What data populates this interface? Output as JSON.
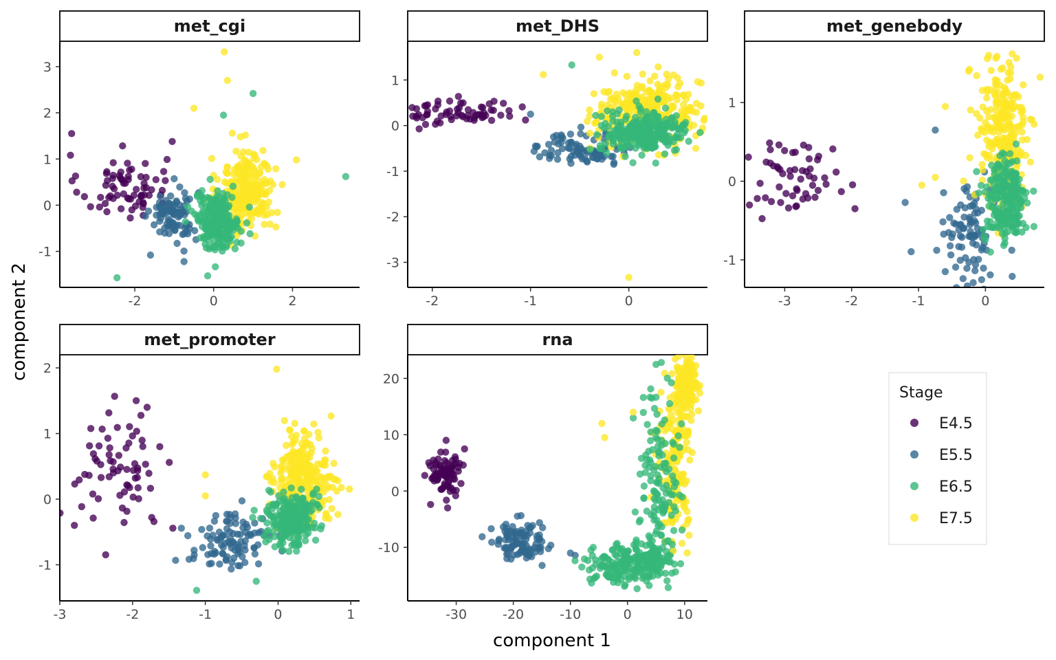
{
  "chart_data": {
    "type": "scatter",
    "xlabel": "component 1",
    "ylabel": "component 2",
    "legend": {
      "title": "Stage",
      "position": "right",
      "entries": [
        {
          "label": "E4.5",
          "color": "#440154"
        },
        {
          "label": "E5.5",
          "color": "#31688E"
        },
        {
          "label": "E6.5",
          "color": "#35B779"
        },
        {
          "label": "E7.5",
          "color": "#FDE725"
        }
      ]
    },
    "panels": [
      {
        "title": "met_cgi",
        "xlim": [
          -3.9,
          3.7
        ],
        "ylim": [
          -1.78,
          3.55
        ],
        "xticks": [
          -2,
          0,
          2
        ],
        "yticks": [
          -1,
          0,
          1,
          2,
          3
        ],
        "clusters": [
          {
            "stage": "E4.5",
            "cx": -2.3,
            "cy": 0.4,
            "sx": 0.55,
            "sy": 0.35,
            "n": 70
          },
          {
            "stage": "E5.5",
            "cx": -1.0,
            "cy": -0.2,
            "sx": 0.3,
            "sy": 0.3,
            "n": 90
          },
          {
            "stage": "E7.5",
            "cx": 0.85,
            "cy": 0.3,
            "sx": 0.35,
            "sy": 0.45,
            "n": 260
          },
          {
            "stage": "E6.5",
            "cx": 0.1,
            "cy": -0.35,
            "sx": 0.28,
            "sy": 0.3,
            "n": 240
          }
        ],
        "outliers": [
          {
            "stage": "E7.5",
            "x": 0.27,
            "y": 3.32
          },
          {
            "stage": "E7.5",
            "x": 0.35,
            "y": 2.7
          },
          {
            "stage": "E7.5",
            "x": -0.5,
            "y": 2.1
          },
          {
            "stage": "E7.5",
            "x": 2.1,
            "y": 0.98
          },
          {
            "stage": "E6.5",
            "x": 1.0,
            "y": 2.42
          },
          {
            "stage": "E6.5",
            "x": 0.25,
            "y": 1.95
          },
          {
            "stage": "E6.5",
            "x": 3.35,
            "y": 0.62
          },
          {
            "stage": "E6.5",
            "x": -2.45,
            "y": -1.57
          },
          {
            "stage": "E6.5",
            "x": -0.15,
            "y": -1.53
          },
          {
            "stage": "E4.5",
            "x": -3.6,
            "y": 1.55
          },
          {
            "stage": "E4.5",
            "x": -1.05,
            "y": 1.38
          },
          {
            "stage": "E5.5",
            "x": -1.6,
            "y": -1.08
          },
          {
            "stage": "E5.5",
            "x": -0.75,
            "y": -1.22
          }
        ]
      },
      {
        "title": "met_DHS",
        "xlim": [
          -2.25,
          0.8
        ],
        "ylim": [
          -3.55,
          1.85
        ],
        "xticks": [
          -2,
          -1,
          0
        ],
        "yticks": [
          -3,
          -2,
          -1,
          0,
          1
        ],
        "clusters": [
          {
            "stage": "E4.5",
            "cx": -1.7,
            "cy": 0.3,
            "sx": 0.28,
            "sy": 0.15,
            "n": 65
          },
          {
            "stage": "E5.5",
            "cx": -0.45,
            "cy": -0.5,
            "sx": 0.25,
            "sy": 0.18,
            "n": 90
          },
          {
            "stage": "E7.5",
            "cx": 0.2,
            "cy": 0.3,
            "sx": 0.27,
            "sy": 0.35,
            "n": 300
          },
          {
            "stage": "E6.5",
            "cx": 0.15,
            "cy": -0.15,
            "sx": 0.22,
            "sy": 0.22,
            "n": 270
          }
        ],
        "outliers": [
          {
            "stage": "E7.5",
            "x": 0.08,
            "y": 1.6
          },
          {
            "stage": "E7.5",
            "x": -0.3,
            "y": 1.5
          },
          {
            "stage": "E7.5",
            "x": -0.87,
            "y": 1.12
          },
          {
            "stage": "E7.5",
            "x": 0.0,
            "y": -3.33
          },
          {
            "stage": "E6.5",
            "x": -0.58,
            "y": 1.33
          },
          {
            "stage": "E5.5",
            "x": -0.95,
            "y": -0.45
          },
          {
            "stage": "E5.5",
            "x": -1.0,
            "y": 0.25
          }
        ]
      },
      {
        "title": "met_genebody",
        "xlim": [
          -3.6,
          0.88
        ],
        "ylim": [
          -1.35,
          1.78
        ],
        "xticks": [
          -3,
          -2,
          -1,
          0
        ],
        "yticks": [
          -1,
          0,
          1
        ],
        "clusters": [
          {
            "stage": "E4.5",
            "cx": -2.85,
            "cy": 0.05,
            "sx": 0.35,
            "sy": 0.25,
            "n": 55
          },
          {
            "stage": "E5.5",
            "cx": -0.2,
            "cy": -0.65,
            "sx": 0.22,
            "sy": 0.28,
            "n": 90
          },
          {
            "stage": "E7.5",
            "cx": 0.25,
            "cy": 0.55,
            "sx": 0.18,
            "sy": 0.55,
            "n": 280
          },
          {
            "stage": "E6.5",
            "cx": 0.3,
            "cy": -0.25,
            "sx": 0.16,
            "sy": 0.28,
            "n": 240
          }
        ],
        "outliers": [
          {
            "stage": "E7.5",
            "x": 0.05,
            "y": 1.6
          },
          {
            "stage": "E7.5",
            "x": 0.4,
            "y": 1.62
          },
          {
            "stage": "E7.5",
            "x": -0.25,
            "y": 1.4
          },
          {
            "stage": "E7.5",
            "x": -0.6,
            "y": 0.95
          },
          {
            "stage": "E7.5",
            "x": -0.75,
            "y": 0.05
          },
          {
            "stage": "E7.5",
            "x": -0.95,
            "y": -0.05
          },
          {
            "stage": "E4.5",
            "x": -1.95,
            "y": -0.35
          },
          {
            "stage": "E5.5",
            "x": -1.2,
            "y": -0.27
          },
          {
            "stage": "E5.5",
            "x": -0.75,
            "y": 0.65
          },
          {
            "stage": "E5.5",
            "x": 0.4,
            "y": -1.21
          }
        ]
      },
      {
        "title": "met_promoter",
        "xlim": [
          -3.0,
          1.12
        ],
        "ylim": [
          -1.55,
          2.2
        ],
        "xticks": [
          -3,
          -2,
          -1,
          0,
          1
        ],
        "yticks": [
          -1,
          0,
          1,
          2
        ],
        "clusters": [
          {
            "stage": "E4.5",
            "cx": -2.2,
            "cy": 0.45,
            "sx": 0.35,
            "sy": 0.4,
            "n": 70
          },
          {
            "stage": "E5.5",
            "cx": -0.65,
            "cy": -0.65,
            "sx": 0.3,
            "sy": 0.22,
            "n": 100
          },
          {
            "stage": "E7.5",
            "cx": 0.35,
            "cy": 0.3,
            "sx": 0.2,
            "sy": 0.35,
            "n": 280
          },
          {
            "stage": "E6.5",
            "cx": 0.18,
            "cy": -0.3,
            "sx": 0.16,
            "sy": 0.22,
            "n": 240
          }
        ],
        "outliers": [
          {
            "stage": "E7.5",
            "x": -0.02,
            "y": 1.98
          },
          {
            "stage": "E7.5",
            "x": -1.0,
            "y": 0.37
          },
          {
            "stage": "E7.5",
            "x": -1.0,
            "y": 0.05
          },
          {
            "stage": "E6.5",
            "x": -1.12,
            "y": -1.39
          },
          {
            "stage": "E6.5",
            "x": -0.3,
            "y": -1.25
          },
          {
            "stage": "E4.5",
            "x": -2.8,
            "y": -0.4
          },
          {
            "stage": "E4.5",
            "x": -1.8,
            "y": 1.4
          },
          {
            "stage": "E4.5",
            "x": -1.95,
            "y": 1.5
          }
        ]
      },
      {
        "title": "rna",
        "xlim": [
          -38.5,
          14.0
        ],
        "ylim": [
          -19.5,
          24.2
        ],
        "xticks": [
          -30,
          -20,
          -10,
          0,
          10
        ],
        "yticks": [
          -10,
          0,
          10,
          20
        ],
        "clusters": [
          {
            "stage": "E4.5",
            "cx": -32,
            "cy": 3.5,
            "sx": 1.5,
            "sy": 2.0,
            "n": 80
          },
          {
            "stage": "E5.5",
            "cx": -18.5,
            "cy": -9.0,
            "sx": 2.5,
            "sy": 1.8,
            "n": 100
          },
          {
            "stage": "E6.5",
            "cx": 0.5,
            "cy": -13.0,
            "sx": 3.5,
            "sy": 1.8,
            "n": 220
          },
          {
            "stage": "E7.5",
            "cx": 10.3,
            "cy": 19.0,
            "sx": 1.0,
            "sy": 2.2,
            "n": 150
          },
          {
            "stage": "E7.5",
            "cx": 8.5,
            "cy": 5.0,
            "sx": 1.5,
            "sy": 6.5,
            "n": 170
          },
          {
            "stage": "E6.5",
            "cx": 5.5,
            "cy": 2.0,
            "sx": 1.8,
            "sy": 8.0,
            "n": 140
          }
        ],
        "outliers": [
          {
            "stage": "E7.5",
            "x": -4.5,
            "y": 12.0
          },
          {
            "stage": "E7.5",
            "x": 1.0,
            "y": 14.0
          },
          {
            "stage": "E7.5",
            "x": -4.0,
            "y": 9.5
          },
          {
            "stage": "E6.5",
            "x": -8.0,
            "y": -13.5
          },
          {
            "stage": "E6.5",
            "x": -6.0,
            "y": -10.0
          },
          {
            "stage": "E5.5",
            "x": -10.0,
            "y": -11.0
          },
          {
            "stage": "E4.5",
            "x": -31.5,
            "y": -3.0
          }
        ]
      }
    ]
  }
}
